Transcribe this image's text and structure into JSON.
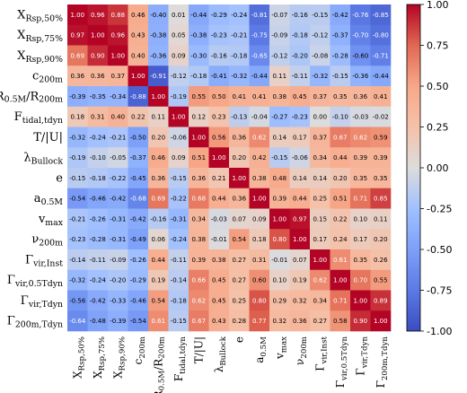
{
  "chart_data": {
    "type": "heatmap",
    "title": "",
    "xlabel": "",
    "ylabel": "",
    "labels": [
      "X_Rsp,50%",
      "X_Rsp,75%",
      "X_Rsp,90%",
      "c_200m",
      "R_0.5M/R_200m",
      "F_tidal,tdyn",
      "T/|U|",
      "λ_Bullock",
      "e",
      "a_0.5M",
      "v_max",
      "ν_200m",
      "Γ_vir,Inst",
      "Γ_vir,0.5Tdyn",
      "Γ_vir,Tdyn",
      "Γ_200m,Tdyn"
    ],
    "values": [
      [
        1.0,
        0.96,
        0.88,
        0.46,
        -0.4,
        0.01,
        -0.44,
        -0.29,
        -0.24,
        -0.81,
        -0.07,
        -0.16,
        -0.15,
        -0.42,
        -0.76,
        -0.85
      ],
      [
        0.97,
        1.0,
        0.96,
        0.43,
        -0.38,
        0.05,
        -0.38,
        -0.23,
        -0.21,
        -0.75,
        -0.09,
        -0.18,
        -0.12,
        -0.37,
        -0.7,
        -0.8
      ],
      [
        0.69,
        0.9,
        1.0,
        0.4,
        -0.36,
        0.09,
        -0.3,
        -0.16,
        -0.18,
        -0.65,
        -0.12,
        -0.2,
        -0.08,
        -0.28,
        -0.6,
        -0.71
      ],
      [
        0.36,
        0.36,
        0.37,
        1.0,
        -0.91,
        -0.12,
        -0.18,
        -0.41,
        -0.32,
        -0.44,
        0.11,
        -0.11,
        -0.32,
        -0.15,
        -0.36,
        -0.44
      ],
      [
        -0.39,
        -0.35,
        -0.34,
        -0.88,
        1.0,
        -0.19,
        0.55,
        0.5,
        0.41,
        0.41,
        0.38,
        0.45,
        0.37,
        0.35,
        0.36,
        0.41
      ],
      [
        0.18,
        0.31,
        0.4,
        0.22,
        0.11,
        1.0,
        0.12,
        0.23,
        -0.13,
        -0.04,
        -0.27,
        -0.23,
        0.0,
        -0.1,
        -0.03,
        -0.02
      ],
      [
        -0.32,
        -0.24,
        -0.21,
        -0.5,
        0.2,
        -0.06,
        1.0,
        0.56,
        0.36,
        0.62,
        0.14,
        0.17,
        0.37,
        0.67,
        0.62,
        0.59
      ],
      [
        -0.19,
        -0.1,
        -0.05,
        -0.37,
        0.46,
        0.09,
        0.51,
        1.0,
        0.2,
        0.42,
        -0.15,
        -0.06,
        0.34,
        0.44,
        0.39,
        0.39
      ],
      [
        -0.15,
        -0.18,
        -0.22,
        -0.45,
        0.36,
        -0.15,
        0.36,
        0.21,
        1.0,
        0.38,
        0.48,
        0.14,
        0.14,
        0.2,
        0.35,
        0.35
      ],
      [
        -0.54,
        -0.46,
        -0.42,
        -0.68,
        0.69,
        -0.22,
        0.68,
        0.44,
        0.36,
        1.0,
        0.39,
        0.44,
        0.25,
        0.51,
        0.71,
        0.85
      ],
      [
        -0.21,
        -0.26,
        -0.31,
        -0.42,
        -0.16,
        -0.31,
        0.34,
        -0.03,
        0.07,
        0.09,
        1.0,
        0.97,
        0.15,
        0.22,
        0.1,
        0.11
      ],
      [
        -0.23,
        -0.28,
        -0.31,
        -0.49,
        0.06,
        -0.24,
        0.38,
        -0.01,
        0.54,
        0.18,
        0.8,
        1.0,
        0.17,
        0.24,
        0.17,
        0.2
      ],
      [
        -0.14,
        -0.11,
        -0.09,
        -0.26,
        0.44,
        -0.11,
        0.39,
        0.38,
        0.27,
        0.31,
        -0.01,
        0.07,
        1.0,
        0.61,
        0.35,
        0.26
      ],
      [
        -0.32,
        -0.24,
        -0.2,
        -0.29,
        0.19,
        -0.14,
        0.66,
        0.45,
        0.27,
        0.6,
        0.1,
        0.19,
        0.62,
        1.0,
        0.7,
        0.55
      ],
      [
        -0.56,
        -0.42,
        -0.33,
        -0.46,
        0.54,
        -0.18,
        0.62,
        0.45,
        0.25,
        0.8,
        0.29,
        0.32,
        0.34,
        0.71,
        1.0,
        0.89
      ],
      [
        -0.64,
        -0.48,
        -0.39,
        -0.54,
        0.61,
        -0.15,
        0.67,
        0.43,
        0.28,
        0.77,
        0.32,
        0.36,
        0.27,
        0.58,
        0.9,
        1.0
      ]
    ],
    "colorbar": {
      "range": [
        -1.0,
        1.0
      ],
      "ticks": [
        "1.00",
        "0.75",
        "0.50",
        "0.25",
        "0.00",
        "-0.25",
        "-0.50",
        "-0.75",
        "-1.00"
      ],
      "colormap": "coolwarm"
    },
    "grid": false,
    "legend": "none"
  }
}
